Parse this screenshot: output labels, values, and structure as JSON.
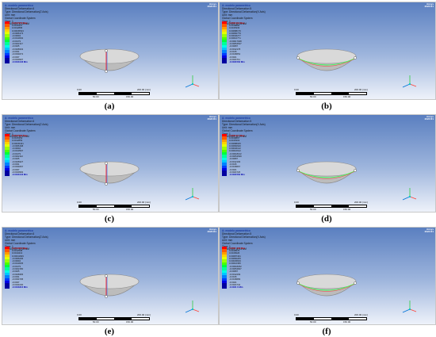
{
  "figure": {
    "panels": [
      {
        "id": "a",
        "caption": "(a)",
        "title": "A: modelo parametrico",
        "info": [
          "Directional Deformation 6",
          "Type: Directional Deformation(Z Axis)",
          "Unit: mm",
          "Global Coordinate System",
          "Time: 1",
          "11/16/2023 11:05 AM"
        ],
        "max_value": "0.0017979 Max",
        "levels": [
          "0.0015337",
          "0.0012895",
          "0.00045543",
          "-0.0006173",
          "-0.00094",
          "-0.0013602",
          "-0.00179",
          "-0.0022117",
          "-0.0025",
          "-0.0028332",
          "-0.0031",
          "-0.0034672",
          "-0.0037",
          "-0.0040997"
        ],
        "min_value": "-0.0043146 Min",
        "meridian": "vertical"
      },
      {
        "id": "b",
        "caption": "(b)",
        "title": "A: modelo parametrico",
        "info": [
          "Directional Deformation 5",
          "Type: Directional Deformation(X Axis)",
          "Unit: mm",
          "Global Coordinate System",
          "Time: 1",
          "11/16/2023 11:06 AM"
        ],
        "max_value": "0.0021431 Max",
        "levels": [
          "0.0018884",
          "0.0015333",
          "0.00088176",
          "0.00082779",
          "0.00046277",
          "0.00016771",
          "-0.00017948",
          "-0.00054547",
          "-0.00087",
          "-0.0012178",
          "-0.0015",
          "-0.0018652",
          "-0.0021",
          "-0.0024711"
        ],
        "min_value": "-0.0031562 Min",
        "meridian": "horizontal"
      },
      {
        "id": "c",
        "caption": "(c)",
        "title": "A: modelo parametrico",
        "info": [
          "Directional Deformation 6",
          "Type: Directional Deformation(Z Axis)",
          "Unit: mm",
          "Global Coordinate System",
          "Time: 1",
          "11/16/2023 11:11 AM"
        ],
        "max_value": "0.0017909 Max",
        "levels": [
          "0.0015353",
          "0.0012853",
          "0.00045441",
          "-0.0006168",
          "-0.00094",
          "-0.0013597",
          "-0.00179",
          "-0.0022112",
          "-0.0025",
          "-0.0028327",
          "-0.0031",
          "-0.0034667",
          "-0.0037",
          "-0.0040992"
        ],
        "min_value": "-0.0043143 Min",
        "meridian": "vertical"
      },
      {
        "id": "d",
        "caption": "(d)",
        "title": "A: modelo parametrico",
        "info": [
          "Directional Deformation 5",
          "Type: Directional Deformation(X Axis)",
          "Unit: mm",
          "Global Coordinate System",
          "Time: 1",
          "11/16/2023 11:20 AM"
        ],
        "max_value": "0.0021417 Max",
        "levels": [
          "0.0018867",
          "0.0015319",
          "0.00088025",
          "0.00082620",
          "0.00046122",
          "0.00016612",
          "-0.00018102",
          "-0.00054699",
          "-0.00087",
          "-0.0012193",
          "-0.0015",
          "-0.0018667",
          "-0.0021",
          "-0.0024726"
        ],
        "min_value": "-0.0031562 Min",
        "meridian": "horizontal"
      },
      {
        "id": "e",
        "caption": "(e)",
        "title": "A: modelo parametrico",
        "info": [
          "Directional Deformation 6",
          "Type: Directional Deformation(Z Axis)",
          "Unit: mm",
          "Global Coordinate System",
          "Time: 1",
          "11/16/2023 11:26 AM"
        ],
        "max_value": "0.0014603 Max",
        "levels": [
          "0.0012508",
          "0.0010413",
          "0.00041829",
          "-0.0006206",
          "-0.00094",
          "-0.0013635",
          "-0.00179",
          "-0.0022150",
          "-0.0025",
          "-0.0028365",
          "-0.0031",
          "-0.0034705",
          "-0.0037",
          "-0.0041030"
        ],
        "min_value": "-0.0043316 Min",
        "meridian": "vertical"
      },
      {
        "id": "f",
        "caption": "(f)",
        "title": "A: modelo parametrico",
        "info": [
          "Directional Deformation 5",
          "Type: Directional Deformation(X Axis)",
          "Unit: mm",
          "Global Coordinate System",
          "Time: 1",
          "11/16/2023 11:31 AM"
        ],
        "max_value": "0.0021 102 Max",
        "levels": [
          "0.0018576",
          "0.0015026",
          "0.00087431",
          "0.00082205",
          "0.00045819",
          "0.00016395",
          "-0.00018262",
          "-0.00054847",
          "-0.00087",
          "-0.0012209",
          "-0.0015",
          "-0.0018683",
          "-0.0021",
          "-0.0024742"
        ],
        "min_value": "-0.0031 6 Min",
        "meridian": "horizontal"
      }
    ],
    "scale": {
      "top_left": "0.00",
      "top_right": "200.00 (mm)",
      "bottom_left": "50.00",
      "bottom_right": "150.00"
    },
    "logo": {
      "line1": "Ansys",
      "line2": "2023 R1"
    },
    "colors": [
      "#ff0000",
      "#ff5a00",
      "#ff9b00",
      "#ffd200",
      "#e6ff00",
      "#9bff00",
      "#4bff00",
      "#00ff3c",
      "#00ff9b",
      "#00ffe6",
      "#00c8ff",
      "#0082ff",
      "#003cff",
      "#0000e6",
      "#0000a0"
    ]
  }
}
